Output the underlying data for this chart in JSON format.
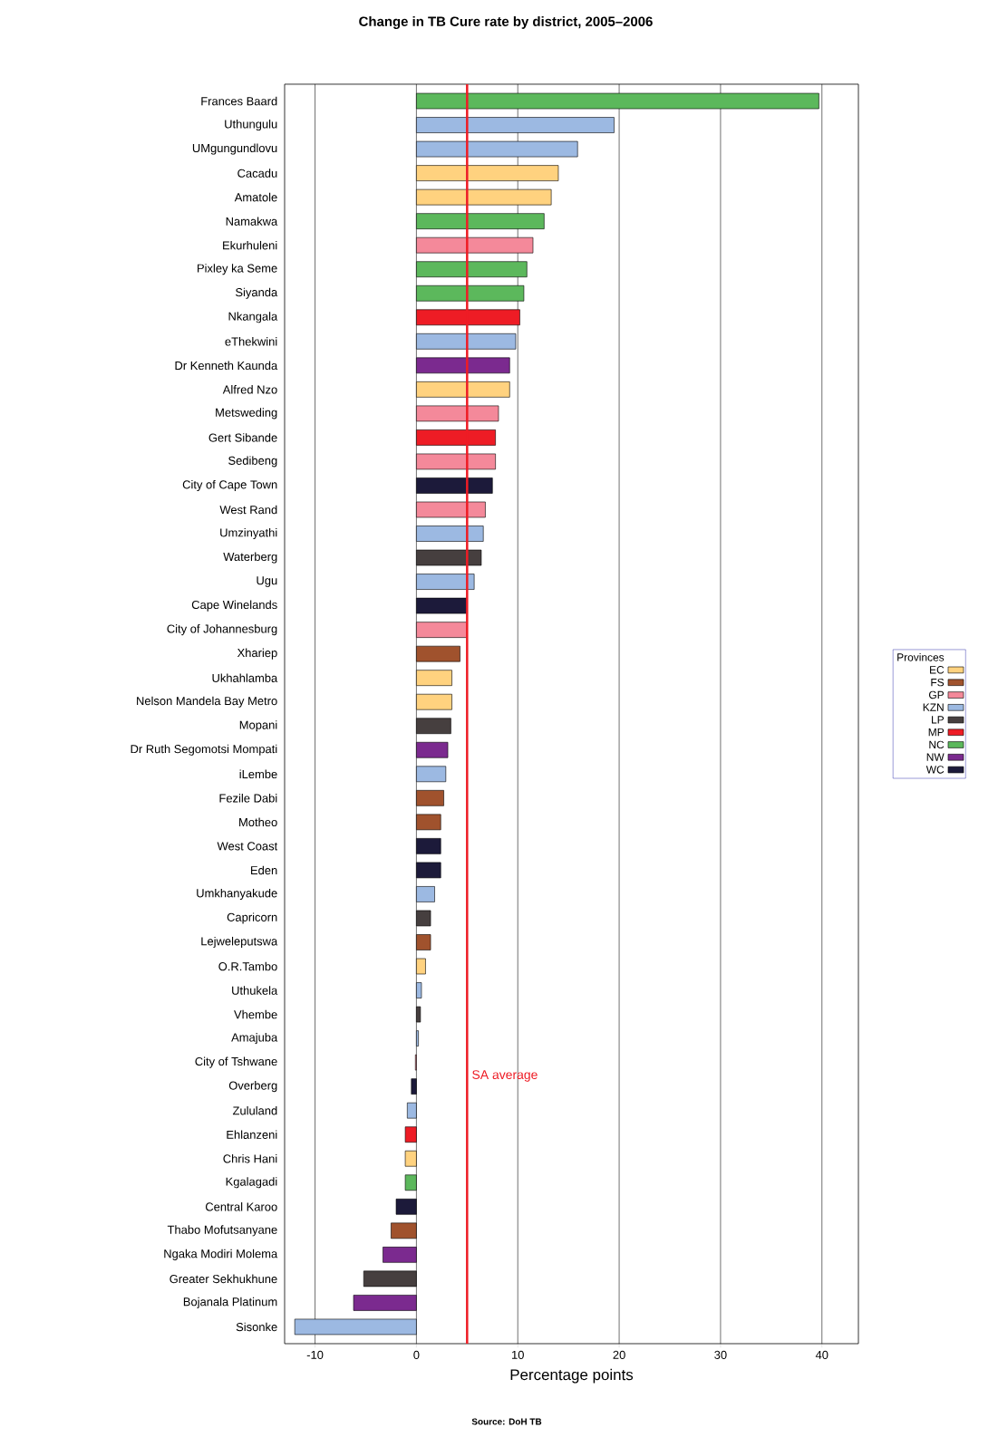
{
  "chart_data": {
    "type": "bar",
    "orientation": "horizontal",
    "title": "Change in TB Cure rate by district, 2005–2006",
    "xlabel": "Percentage points",
    "annotations": [
      "Source: DoH TB"
    ],
    "categories": [
      "Frances Baard",
      "Uthungulu",
      "UMgungundlovu",
      "Cacadu",
      "Amatole",
      "Namakwa",
      "Ekurhuleni",
      "Pixley ka Seme",
      "Siyanda",
      "Nkangala",
      "eThekwini",
      "Dr Kenneth Kaunda",
      "Alfred Nzo",
      "Metsweding",
      "Gert Sibande",
      "Sedibeng",
      "City of Cape Town",
      "West Rand",
      "Umzinyathi",
      "Waterberg",
      "Ugu",
      "Cape Winelands",
      "City of Johannesburg",
      "Xhariep",
      "Ukhahlamba",
      "Nelson Mandela Bay Metro",
      "Mopani",
      "Dr Ruth Segomotsi Mompati",
      "iLembe",
      "Fezile Dabi",
      "Motheo",
      "West Coast",
      "Eden",
      "Umkhanyakude",
      "Capricorn",
      "Lejweleputswa",
      "O.R.Tambo",
      "Uthukela",
      "Vhembe",
      "Amajuba",
      "City of Tshwane",
      "Overberg",
      "Zululand",
      "Ehlanzeni",
      "Chris Hani",
      "Kgalagadi",
      "Central Karoo",
      "Thabo Mofutsanyane",
      "Ngaka Modiri Molema",
      "Greater Sekhukhune",
      "Bojanala Platinum",
      "Sisonke"
    ],
    "series": [
      {
        "name": "EC",
        "color": "#ffd27f",
        "values": [
          null,
          null,
          null,
          14.0,
          13.3,
          null,
          null,
          null,
          null,
          null,
          null,
          null,
          9.2,
          null,
          null,
          null,
          null,
          null,
          null,
          null,
          null,
          null,
          null,
          null,
          3.5,
          3.5,
          null,
          null,
          null,
          null,
          null,
          null,
          null,
          null,
          null,
          null,
          0.9,
          null,
          null,
          null,
          null,
          null,
          null,
          null,
          -1.1,
          null,
          null,
          null,
          null,
          null,
          null,
          null
        ]
      },
      {
        "name": "FS",
        "color": "#a0522d",
        "values": [
          null,
          null,
          null,
          null,
          null,
          null,
          null,
          null,
          null,
          null,
          null,
          null,
          null,
          null,
          null,
          null,
          null,
          null,
          null,
          null,
          null,
          null,
          null,
          4.3,
          null,
          null,
          null,
          null,
          null,
          2.7,
          2.4,
          null,
          null,
          null,
          null,
          1.4,
          null,
          null,
          null,
          null,
          null,
          null,
          null,
          null,
          null,
          null,
          null,
          -2.5,
          null,
          null,
          null,
          null
        ]
      },
      {
        "name": "GP",
        "color": "#f4899a",
        "values": [
          null,
          null,
          null,
          null,
          null,
          null,
          11.5,
          null,
          null,
          null,
          null,
          null,
          null,
          8.1,
          null,
          7.8,
          null,
          6.8,
          null,
          null,
          null,
          null,
          5.0,
          null,
          null,
          null,
          null,
          null,
          null,
          null,
          null,
          null,
          null,
          null,
          null,
          null,
          null,
          null,
          null,
          null,
          -0.1,
          null,
          null,
          null,
          null,
          null,
          null,
          null,
          null,
          null,
          null,
          null
        ]
      },
      {
        "name": "KZN",
        "color": "#9cb9e2",
        "values": [
          null,
          19.5,
          15.9,
          null,
          null,
          null,
          null,
          null,
          null,
          null,
          9.8,
          null,
          null,
          null,
          null,
          null,
          null,
          null,
          6.6,
          null,
          5.7,
          null,
          null,
          null,
          null,
          null,
          null,
          null,
          2.9,
          null,
          null,
          null,
          null,
          1.8,
          null,
          null,
          null,
          0.5,
          null,
          0.2,
          null,
          null,
          -0.9,
          null,
          null,
          null,
          null,
          null,
          null,
          null,
          null,
          -12.0
        ]
      },
      {
        "name": "LP",
        "color": "#463f3f",
        "values": [
          null,
          null,
          null,
          null,
          null,
          null,
          null,
          null,
          null,
          null,
          null,
          null,
          null,
          null,
          null,
          null,
          null,
          null,
          null,
          6.4,
          null,
          null,
          null,
          null,
          null,
          null,
          3.4,
          null,
          null,
          null,
          null,
          null,
          null,
          null,
          1.4,
          null,
          null,
          null,
          0.4,
          null,
          null,
          null,
          null,
          null,
          null,
          null,
          null,
          null,
          null,
          -5.2,
          null,
          null
        ]
      },
      {
        "name": "MP",
        "color": "#ee1c25",
        "values": [
          null,
          null,
          null,
          null,
          null,
          null,
          null,
          null,
          null,
          10.2,
          null,
          null,
          null,
          null,
          7.8,
          null,
          null,
          null,
          null,
          null,
          null,
          null,
          null,
          null,
          null,
          null,
          null,
          null,
          null,
          null,
          null,
          null,
          null,
          null,
          null,
          null,
          null,
          null,
          null,
          null,
          null,
          null,
          null,
          -1.1,
          null,
          null,
          null,
          null,
          null,
          null,
          null,
          null
        ]
      },
      {
        "name": "NC",
        "color": "#5cb85c",
        "values": [
          39.7,
          null,
          null,
          null,
          null,
          12.6,
          null,
          10.9,
          10.6,
          null,
          null,
          null,
          null,
          null,
          null,
          null,
          null,
          null,
          null,
          null,
          null,
          null,
          null,
          null,
          null,
          null,
          null,
          null,
          null,
          null,
          null,
          null,
          null,
          null,
          null,
          null,
          null,
          null,
          null,
          null,
          null,
          null,
          null,
          null,
          null,
          -1.1,
          null,
          null,
          null,
          null,
          null,
          null
        ]
      },
      {
        "name": "NW",
        "color": "#7b2a8f",
        "values": [
          null,
          null,
          null,
          null,
          null,
          null,
          null,
          null,
          null,
          null,
          null,
          9.2,
          null,
          null,
          null,
          null,
          null,
          null,
          null,
          null,
          null,
          null,
          null,
          null,
          null,
          null,
          null,
          3.1,
          null,
          null,
          null,
          null,
          null,
          null,
          null,
          null,
          null,
          null,
          null,
          null,
          null,
          null,
          null,
          null,
          null,
          null,
          null,
          null,
          -3.3,
          null,
          -6.2,
          null
        ]
      },
      {
        "name": "WC",
        "color": "#1c1a3a",
        "values": [
          null,
          null,
          null,
          null,
          null,
          null,
          null,
          null,
          null,
          null,
          null,
          null,
          null,
          null,
          null,
          null,
          7.5,
          null,
          null,
          null,
          null,
          5.0,
          null,
          null,
          null,
          null,
          null,
          null,
          null,
          null,
          null,
          2.4,
          2.4,
          null,
          null,
          null,
          null,
          null,
          null,
          null,
          null,
          -0.5,
          null,
          null,
          null,
          null,
          -2.0,
          null,
          null,
          null,
          null,
          null
        ]
      }
    ],
    "xlim": [
      -13,
      43.6
    ],
    "xticks": [
      -10,
      0,
      10,
      20,
      30,
      40
    ],
    "grid": "x",
    "legend": "right",
    "legend_title": "Provinces",
    "ref_lines": [
      {
        "axis": "x",
        "value": 5,
        "label": "SA average",
        "color": "#ee1c25"
      }
    ]
  }
}
